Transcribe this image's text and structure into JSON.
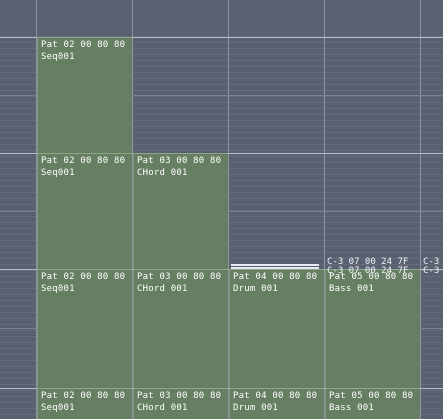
{
  "colors": {
    "background": "#59606f",
    "block_fill": "#667f62",
    "text": "#ffffff"
  },
  "rows": [
    {
      "blocks": [
        {
          "title": "Pat 02 00 80 80",
          "name": "Seq001"
        }
      ]
    },
    {
      "blocks": [
        {
          "title": "Pat 02 00 80 80",
          "name": "Seq001"
        },
        {
          "title": "Pat 03 00 80 80",
          "name": "CHord 001"
        }
      ]
    },
    {
      "blocks": [
        {
          "title": "Pat 02 00 80 80",
          "name": "Seq001"
        },
        {
          "title": "Pat 03 00 80 80",
          "name": "CHord 001"
        },
        {
          "title": "Pat 04 00 80 80",
          "name": "Drum 001"
        },
        {
          "title": "Pat 05 00 80 80",
          "name": "Bass 001"
        }
      ]
    },
    {
      "blocks": [
        {
          "title": "Pat 02 00 80 80",
          "name": "Seq001"
        },
        {
          "title": "Pat 03 00 80 80",
          "name": "CHord 001"
        },
        {
          "title": "Pat 04 00 80 80",
          "name": "Drum 001"
        },
        {
          "title": "Pat 05 00 80 80",
          "name": "Bass 001"
        }
      ]
    }
  ],
  "overlay": {
    "bass_lines": [
      "C-3 07 00 24 7F",
      "C-3 07 00 24 7F"
    ],
    "right_edge_lines": [
      "C-3",
      "C-3"
    ]
  }
}
